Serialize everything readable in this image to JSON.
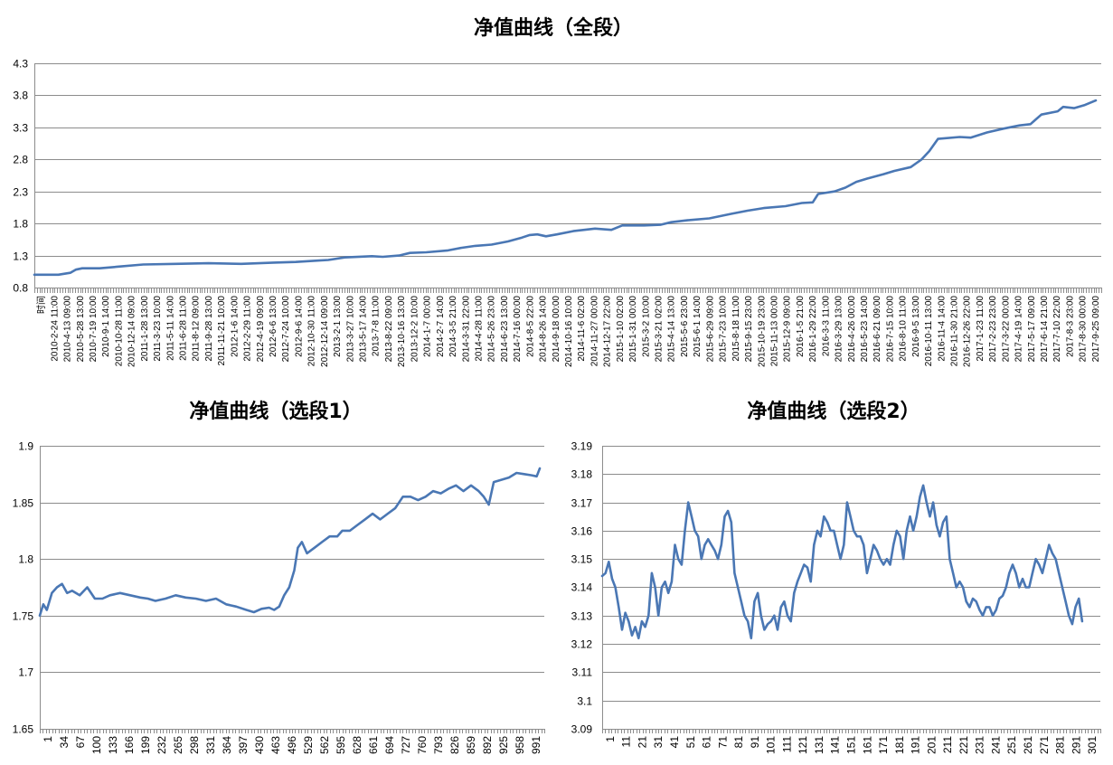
{
  "chart_data": [
    {
      "type": "line",
      "title": "净值曲线（全段）",
      "ylim": [
        0.8,
        4.3
      ],
      "yticks": [
        "0.8",
        "1.3",
        "1.8",
        "2.3",
        "2.8",
        "3.3",
        "3.8",
        "4.3"
      ],
      "grid": true,
      "xticks": [
        "时间",
        "2010-2-24 11:00",
        "2010-4-13 09:00",
        "2010-5-28 13:00",
        "2010-7-19 10:00",
        "2010-9-1 14:00",
        "2010-10-28 11:00",
        "2010-12-14 09:00",
        "2011-1-28 13:00",
        "2011-3-23 10:00",
        "2011-5-11 14:00",
        "2011-6-28 11:00",
        "2011-8-12 09:00",
        "2011-9-28 13:00",
        "2011-11-21 10:00",
        "2012-1-6 14:00",
        "2012-2-29 11:00",
        "2012-4-19 09:00",
        "2012-6-6 13:00",
        "2012-7-24 10:00",
        "2012-9-6 14:00",
        "2012-10-30 11:00",
        "2012-12-14 09:00",
        "2013-2-1 13:00",
        "2013-3-27 10:00",
        "2013-5-17 14:00",
        "2013-7-8 11:00",
        "2013-8-22 09:00",
        "2013-10-16 13:00",
        "2013-12-2 10:00",
        "2014-1-7 00:00",
        "2014-2-7 14:00",
        "2014-3-5 21:00",
        "2014-3-31 22:00",
        "2014-4-28 11:00",
        "2014-5-26 23:00",
        "2014-6-23 13:00",
        "2014-7-16 00:00",
        "2014-8-5 22:00",
        "2014-8-26 14:00",
        "2014-9-18 00:00",
        "2014-10-16 10:00",
        "2014-11-6 02:00",
        "2014-11-27 00:00",
        "2014-12-17 22:00",
        "2015-1-10 02:00",
        "2015-1-31 00:00",
        "2015-3-2 10:00",
        "2015-3-21 02:00",
        "2015-4-14 13:00",
        "2015-5-6 23:00",
        "2015-6-1 14:00",
        "2015-6-29 09:00",
        "2015-7-23 10:00",
        "2015-8-18 11:00",
        "2015-9-15 23:00",
        "2015-10-19 23:00",
        "2015-11-13 00:00",
        "2015-12-9 09:00",
        "2016-1-5 21:00",
        "2016-1-29 22:00",
        "2016-3-3 11:00",
        "2016-3-29 13:00",
        "2016-4-26 00:00",
        "2016-5-23 14:00",
        "2016-6-21 09:00",
        "2016-7-15 10:00",
        "2016-8-10 11:00",
        "2016-9-5 13:00",
        "2016-10-11 13:00",
        "2016-11-4 14:00",
        "2016-11-30 21:00",
        "2016-12-26 22:00",
        "2017-1-23 11:00",
        "2017-2-23 23:00",
        "2017-3-22 00:00",
        "2017-4-19 14:00",
        "2017-5-17 09:00",
        "2017-6-14 21:00",
        "2017-7-10 22:00",
        "2017-8-3 23:00",
        "2017-8-30 00:00",
        "2017-9-25 09:00"
      ],
      "series_points": [
        [
          0,
          1.0
        ],
        [
          22,
          1.0
        ],
        [
          33,
          1.03
        ],
        [
          38,
          1.08
        ],
        [
          44,
          1.1
        ],
        [
          60,
          1.1
        ],
        [
          80,
          1.13
        ],
        [
          100,
          1.16
        ],
        [
          130,
          1.17
        ],
        [
          160,
          1.18
        ],
        [
          190,
          1.17
        ],
        [
          220,
          1.19
        ],
        [
          240,
          1.2
        ],
        [
          260,
          1.22
        ],
        [
          270,
          1.23
        ],
        [
          285,
          1.27
        ],
        [
          310,
          1.29
        ],
        [
          320,
          1.28
        ],
        [
          335,
          1.3
        ],
        [
          345,
          1.34
        ],
        [
          360,
          1.35
        ],
        [
          380,
          1.38
        ],
        [
          392,
          1.42
        ],
        [
          405,
          1.45
        ],
        [
          420,
          1.47
        ],
        [
          435,
          1.52
        ],
        [
          448,
          1.58
        ],
        [
          455,
          1.62
        ],
        [
          462,
          1.63
        ],
        [
          470,
          1.6
        ],
        [
          480,
          1.63
        ],
        [
          495,
          1.68
        ],
        [
          505,
          1.7
        ],
        [
          515,
          1.72
        ],
        [
          530,
          1.7
        ],
        [
          540,
          1.77
        ],
        [
          560,
          1.77
        ],
        [
          575,
          1.78
        ],
        [
          585,
          1.82
        ],
        [
          600,
          1.85
        ],
        [
          620,
          1.88
        ],
        [
          640,
          1.95
        ],
        [
          655,
          2.0
        ],
        [
          670,
          2.04
        ],
        [
          690,
          2.07
        ],
        [
          705,
          2.12
        ],
        [
          715,
          2.13
        ],
        [
          720,
          2.26
        ],
        [
          735,
          2.3
        ],
        [
          745,
          2.36
        ],
        [
          755,
          2.45
        ],
        [
          765,
          2.5
        ],
        [
          780,
          2.57
        ],
        [
          790,
          2.62
        ],
        [
          805,
          2.68
        ],
        [
          815,
          2.8
        ],
        [
          822,
          2.93
        ],
        [
          830,
          3.12
        ],
        [
          850,
          3.15
        ],
        [
          860,
          3.14
        ],
        [
          875,
          3.22
        ],
        [
          890,
          3.28
        ],
        [
          905,
          3.33
        ],
        [
          915,
          3.35
        ],
        [
          925,
          3.5
        ],
        [
          940,
          3.55
        ],
        [
          945,
          3.62
        ],
        [
          955,
          3.6
        ],
        [
          965,
          3.65
        ],
        [
          975,
          3.72
        ]
      ]
    },
    {
      "type": "line",
      "title": "净值曲线（选段1）",
      "ylim": [
        1.65,
        1.9
      ],
      "yticks": [
        "1.65",
        "1.7",
        "1.75",
        "1.8",
        "1.85",
        "1.9"
      ],
      "grid": true,
      "xticks": [
        "1",
        "34",
        "67",
        "100",
        "133",
        "166",
        "199",
        "232",
        "265",
        "298",
        "331",
        "364",
        "397",
        "430",
        "463",
        "496",
        "529",
        "562",
        "595",
        "628",
        "661",
        "694",
        "727",
        "760",
        "793",
        "826",
        "859",
        "892",
        "925",
        "958",
        "991"
      ],
      "series_points": [
        [
          1,
          1.75
        ],
        [
          8,
          1.76
        ],
        [
          15,
          1.755
        ],
        [
          25,
          1.77
        ],
        [
          35,
          1.775
        ],
        [
          45,
          1.778
        ],
        [
          55,
          1.77
        ],
        [
          65,
          1.772
        ],
        [
          80,
          1.768
        ],
        [
          95,
          1.775
        ],
        [
          110,
          1.765
        ],
        [
          125,
          1.765
        ],
        [
          140,
          1.768
        ],
        [
          160,
          1.77
        ],
        [
          180,
          1.768
        ],
        [
          200,
          1.766
        ],
        [
          215,
          1.765
        ],
        [
          230,
          1.763
        ],
        [
          250,
          1.765
        ],
        [
          270,
          1.768
        ],
        [
          290,
          1.766
        ],
        [
          310,
          1.765
        ],
        [
          330,
          1.763
        ],
        [
          350,
          1.765
        ],
        [
          370,
          1.76
        ],
        [
          390,
          1.758
        ],
        [
          410,
          1.755
        ],
        [
          425,
          1.753
        ],
        [
          440,
          1.756
        ],
        [
          455,
          1.757
        ],
        [
          465,
          1.755
        ],
        [
          475,
          1.758
        ],
        [
          485,
          1.768
        ],
        [
          495,
          1.775
        ],
        [
          505,
          1.79
        ],
        [
          512,
          1.81
        ],
        [
          520,
          1.815
        ],
        [
          530,
          1.805
        ],
        [
          545,
          1.81
        ],
        [
          560,
          1.815
        ],
        [
          575,
          1.82
        ],
        [
          590,
          1.82
        ],
        [
          600,
          1.825
        ],
        [
          615,
          1.825
        ],
        [
          630,
          1.83
        ],
        [
          645,
          1.835
        ],
        [
          660,
          1.84
        ],
        [
          675,
          1.835
        ],
        [
          690,
          1.84
        ],
        [
          705,
          1.845
        ],
        [
          720,
          1.855
        ],
        [
          735,
          1.855
        ],
        [
          750,
          1.852
        ],
        [
          765,
          1.855
        ],
        [
          780,
          1.86
        ],
        [
          795,
          1.858
        ],
        [
          810,
          1.862
        ],
        [
          825,
          1.865
        ],
        [
          840,
          1.86
        ],
        [
          855,
          1.865
        ],
        [
          870,
          1.86
        ],
        [
          880,
          1.855
        ],
        [
          890,
          1.848
        ],
        [
          900,
          1.868
        ],
        [
          915,
          1.87
        ],
        [
          930,
          1.872
        ],
        [
          945,
          1.876
        ],
        [
          960,
          1.875
        ],
        [
          975,
          1.874
        ],
        [
          985,
          1.873
        ],
        [
          991,
          1.88
        ]
      ]
    },
    {
      "type": "line",
      "title": "净值曲线（选段2）",
      "ylim": [
        3.09,
        3.19
      ],
      "yticks": [
        "3.09",
        "3.1",
        "3.11",
        "3.12",
        "3.13",
        "3.14",
        "3.15",
        "3.16",
        "3.17",
        "3.18",
        "3.19"
      ],
      "grid": true,
      "xticks": [
        "1",
        "11",
        "21",
        "31",
        "41",
        "51",
        "61",
        "71",
        "81",
        "91",
        "101",
        "111",
        "121",
        "131",
        "141",
        "151",
        "161",
        "171",
        "181",
        "191",
        "201",
        "211",
        "221",
        "231",
        "241",
        "251",
        "261",
        "271",
        "281",
        "291",
        "301"
      ],
      "series_points": [
        [
          1,
          3.144
        ],
        [
          3,
          3.145
        ],
        [
          5,
          3.149
        ],
        [
          7,
          3.143
        ],
        [
          9,
          3.14
        ],
        [
          11,
          3.133
        ],
        [
          13,
          3.125
        ],
        [
          15,
          3.131
        ],
        [
          17,
          3.128
        ],
        [
          19,
          3.123
        ],
        [
          21,
          3.126
        ],
        [
          23,
          3.122
        ],
        [
          25,
          3.128
        ],
        [
          27,
          3.126
        ],
        [
          29,
          3.13
        ],
        [
          31,
          3.145
        ],
        [
          33,
          3.14
        ],
        [
          35,
          3.13
        ],
        [
          37,
          3.14
        ],
        [
          39,
          3.142
        ],
        [
          41,
          3.138
        ],
        [
          43,
          3.142
        ],
        [
          45,
          3.155
        ],
        [
          47,
          3.15
        ],
        [
          49,
          3.148
        ],
        [
          51,
          3.16
        ],
        [
          53,
          3.17
        ],
        [
          55,
          3.165
        ],
        [
          57,
          3.16
        ],
        [
          59,
          3.158
        ],
        [
          61,
          3.15
        ],
        [
          63,
          3.155
        ],
        [
          65,
          3.157
        ],
        [
          67,
          3.155
        ],
        [
          69,
          3.153
        ],
        [
          71,
          3.15
        ],
        [
          73,
          3.155
        ],
        [
          75,
          3.165
        ],
        [
          77,
          3.167
        ],
        [
          79,
          3.163
        ],
        [
          81,
          3.145
        ],
        [
          83,
          3.14
        ],
        [
          85,
          3.135
        ],
        [
          87,
          3.13
        ],
        [
          89,
          3.128
        ],
        [
          91,
          3.122
        ],
        [
          93,
          3.135
        ],
        [
          95,
          3.138
        ],
        [
          97,
          3.13
        ],
        [
          99,
          3.125
        ],
        [
          101,
          3.127
        ],
        [
          103,
          3.128
        ],
        [
          105,
          3.13
        ],
        [
          107,
          3.125
        ],
        [
          109,
          3.133
        ],
        [
          111,
          3.135
        ],
        [
          113,
          3.13
        ],
        [
          115,
          3.128
        ],
        [
          117,
          3.138
        ],
        [
          119,
          3.142
        ],
        [
          121,
          3.145
        ],
        [
          123,
          3.148
        ],
        [
          125,
          3.147
        ],
        [
          127,
          3.142
        ],
        [
          129,
          3.155
        ],
        [
          131,
          3.16
        ],
        [
          133,
          3.158
        ],
        [
          135,
          3.165
        ],
        [
          137,
          3.163
        ],
        [
          139,
          3.16
        ],
        [
          141,
          3.16
        ],
        [
          143,
          3.155
        ],
        [
          145,
          3.15
        ],
        [
          147,
          3.155
        ],
        [
          149,
          3.17
        ],
        [
          151,
          3.165
        ],
        [
          153,
          3.16
        ],
        [
          155,
          3.158
        ],
        [
          157,
          3.158
        ],
        [
          159,
          3.155
        ],
        [
          161,
          3.145
        ],
        [
          163,
          3.15
        ],
        [
          165,
          3.155
        ],
        [
          167,
          3.153
        ],
        [
          169,
          3.15
        ],
        [
          171,
          3.148
        ],
        [
          173,
          3.15
        ],
        [
          175,
          3.148
        ],
        [
          177,
          3.155
        ],
        [
          179,
          3.16
        ],
        [
          181,
          3.158
        ],
        [
          183,
          3.15
        ],
        [
          185,
          3.16
        ],
        [
          187,
          3.165
        ],
        [
          189,
          3.16
        ],
        [
          191,
          3.165
        ],
        [
          193,
          3.172
        ],
        [
          195,
          3.176
        ],
        [
          197,
          3.17
        ],
        [
          199,
          3.165
        ],
        [
          201,
          3.17
        ],
        [
          203,
          3.162
        ],
        [
          205,
          3.158
        ],
        [
          207,
          3.163
        ],
        [
          209,
          3.165
        ],
        [
          211,
          3.15
        ],
        [
          213,
          3.145
        ],
        [
          215,
          3.14
        ],
        [
          217,
          3.142
        ],
        [
          219,
          3.14
        ],
        [
          221,
          3.135
        ],
        [
          223,
          3.133
        ],
        [
          225,
          3.136
        ],
        [
          227,
          3.135
        ],
        [
          229,
          3.132
        ],
        [
          231,
          3.13
        ],
        [
          233,
          3.133
        ],
        [
          235,
          3.133
        ],
        [
          237,
          3.13
        ],
        [
          239,
          3.132
        ],
        [
          241,
          3.136
        ],
        [
          243,
          3.137
        ],
        [
          245,
          3.14
        ],
        [
          247,
          3.145
        ],
        [
          249,
          3.148
        ],
        [
          251,
          3.145
        ],
        [
          253,
          3.14
        ],
        [
          255,
          3.143
        ],
        [
          257,
          3.14
        ],
        [
          259,
          3.14
        ],
        [
          261,
          3.145
        ],
        [
          263,
          3.15
        ],
        [
          265,
          3.148
        ],
        [
          267,
          3.145
        ],
        [
          269,
          3.15
        ],
        [
          271,
          3.155
        ],
        [
          273,
          3.152
        ],
        [
          275,
          3.15
        ],
        [
          277,
          3.145
        ],
        [
          279,
          3.14
        ],
        [
          281,
          3.135
        ],
        [
          283,
          3.13
        ],
        [
          285,
          3.127
        ],
        [
          287,
          3.133
        ],
        [
          289,
          3.136
        ],
        [
          291,
          3.128
        ]
      ]
    }
  ]
}
